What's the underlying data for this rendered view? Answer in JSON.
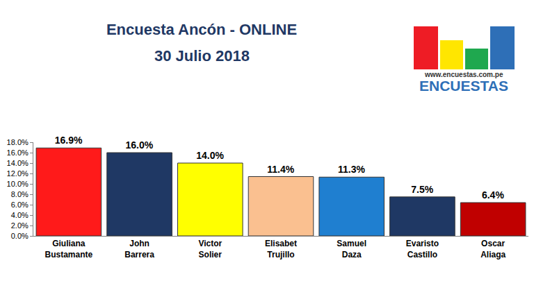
{
  "chart_data": {
    "type": "bar",
    "title": "Encuesta Ancón - ONLINE",
    "subtitle": "30 Julio 2018",
    "categories": [
      "Giuliana Bustamante",
      "John Barrera",
      "Victor Solier",
      "Elisabet Trujillo",
      "Samuel Daza",
      "Evaristo Castillo",
      "Oscar Aliaga"
    ],
    "values": [
      16.9,
      16.0,
      14.0,
      11.4,
      11.3,
      7.5,
      6.4
    ],
    "value_labels": [
      "16.9%",
      "16.0%",
      "14.0%",
      "11.4%",
      "11.3%",
      "7.5%",
      "6.4%"
    ],
    "colors": [
      "#ff1a1a",
      "#1f3864",
      "#ffff00",
      "#fac090",
      "#1f7fd0",
      "#1f3864",
      "#c00000"
    ],
    "ylim": [
      0,
      18
    ],
    "yticks": [
      {
        "value": 0,
        "label": "0.0%"
      },
      {
        "value": 2,
        "label": "2.0%"
      },
      {
        "value": 4,
        "label": "4.0%"
      },
      {
        "value": 6,
        "label": "6.0%"
      },
      {
        "value": 8,
        "label": "8.0%"
      },
      {
        "value": 10,
        "label": "10.0%"
      },
      {
        "value": 12,
        "label": "12.0%"
      },
      {
        "value": 14,
        "label": "14.0%"
      },
      {
        "value": 16,
        "label": "16.0%"
      },
      {
        "value": 18,
        "label": "18.0%"
      }
    ],
    "grid": false,
    "data_labels": true,
    "annotations": [
      "www.encuestas.com.pe",
      "ENCUESTAS"
    ]
  }
}
